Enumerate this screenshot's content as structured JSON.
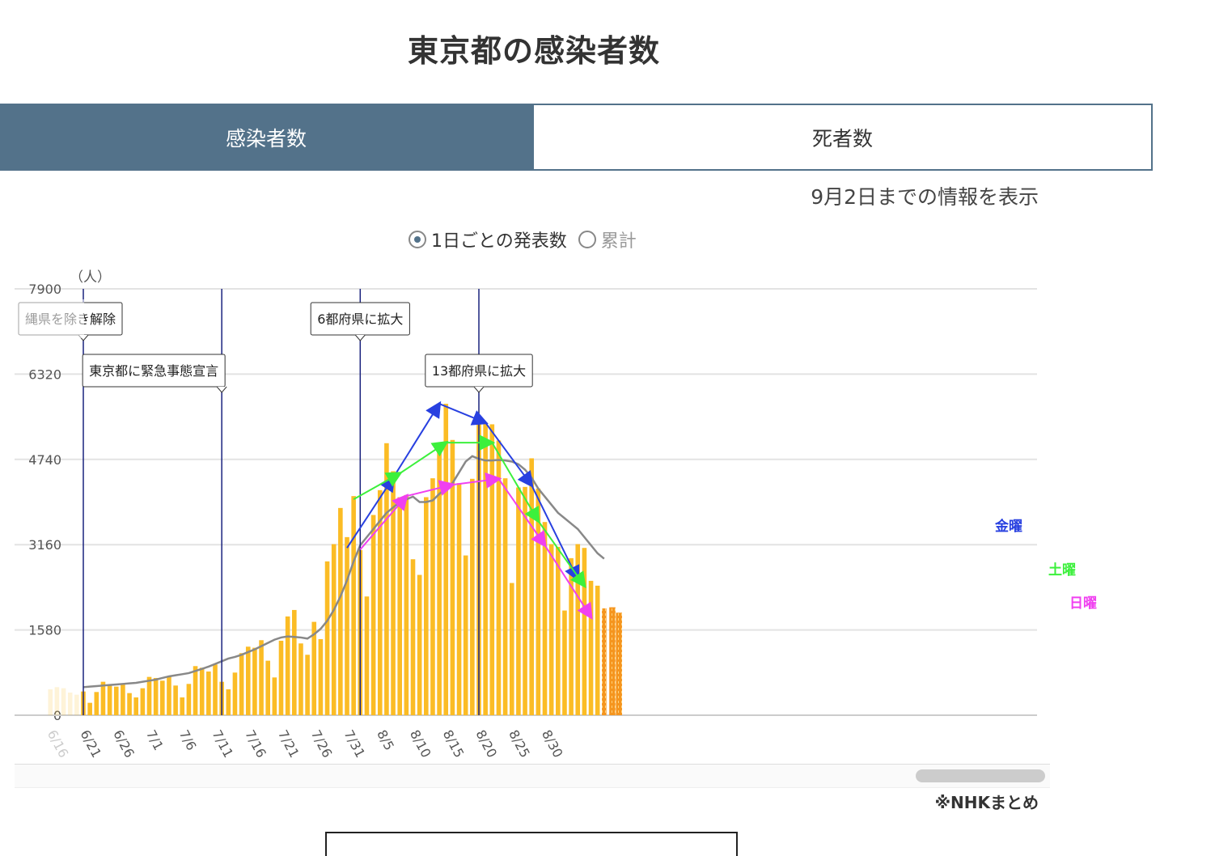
{
  "title": "東京都の感染者数",
  "tabs": [
    {
      "label": "感染者数",
      "active": true
    },
    {
      "label": "死者数",
      "active": false
    }
  ],
  "info": "9月2日までの情報を表示",
  "radios": [
    {
      "label": "1日ごとの発表数",
      "checked": true
    },
    {
      "label": "累計",
      "checked": false
    }
  ],
  "source": "※NHKまとめ",
  "colors": {
    "bar": "#fbbc25",
    "bar_hatched": "#f5951e",
    "avg": "#888888",
    "tab_active": "#53728a",
    "friday": "#2840e0",
    "saturday": "#3cf03c",
    "sunday": "#f040f0",
    "event_line": "#1a237e"
  },
  "chart_data": {
    "type": "bar",
    "unit": "（人）",
    "ylim": [
      0,
      7900
    ],
    "yticks": [
      0,
      1580,
      3160,
      4740,
      6320,
      7900
    ],
    "xtick_labels": [
      "6/16",
      "6/21",
      "6/26",
      "7/1",
      "7/6",
      "7/11",
      "7/16",
      "7/21",
      "7/26",
      "7/31",
      "8/5",
      "8/10",
      "8/15",
      "8/20",
      "8/25",
      "8/30"
    ],
    "start_date": "6/16",
    "values": [
      480,
      520,
      500,
      420,
      380,
      440,
      230,
      430,
      620,
      570,
      530,
      580,
      410,
      330,
      500,
      710,
      690,
      640,
      720,
      550,
      330,
      580,
      910,
      880,
      810,
      940,
      620,
      480,
      790,
      1150,
      1270,
      1250,
      1390,
      1010,
      700,
      1380,
      1830,
      1950,
      1330,
      1120,
      1730,
      1410,
      2850,
      3170,
      3840,
      3300,
      4060,
      3060,
      2200,
      3710,
      4170,
      5040,
      4520,
      4040,
      4080,
      2890,
      2600,
      4040,
      4390,
      4990,
      5770,
      5100,
      4300,
      2960,
      4380,
      5420,
      5420,
      5390,
      5090,
      4390,
      2450,
      4220,
      4230,
      4760,
      4200,
      3580,
      3170,
      3120,
      1940,
      2910,
      3170,
      3100,
      2490,
      2400,
      1980
    ],
    "moving_avg": [
      470,
      480,
      490,
      500,
      510,
      520,
      530,
      540,
      550,
      560,
      570,
      580,
      590,
      600,
      620,
      640,
      660,
      690,
      720,
      740,
      760,
      780,
      820,
      860,
      900,
      950,
      1000,
      1050,
      1080,
      1120,
      1170,
      1220,
      1280,
      1340,
      1400,
      1440,
      1460,
      1450,
      1440,
      1420,
      1500,
      1600,
      1750,
      1950,
      2200,
      2500,
      2850,
      3150,
      3300,
      3450,
      3600,
      3750,
      3850,
      3950,
      4000,
      4050,
      3950,
      3950,
      3980,
      4100,
      4200,
      4300,
      4500,
      4700,
      4800,
      4750,
      4720,
      4720,
      4730,
      4720,
      4700,
      4650,
      4550,
      4400,
      4200,
      4050,
      3900,
      3750,
      3650,
      3550,
      3450,
      3300,
      3150,
      3000,
      2900
    ],
    "hatched_from_index": 84,
    "hatched_extra": [
      2000,
      1900
    ],
    "events": [
      {
        "label": "縄県を除き解除",
        "index": 5
      },
      {
        "label": "東京都に緊急事態宣言",
        "index": 26
      },
      {
        "label": "6都府県に拡大",
        "index": 47
      },
      {
        "label": "13都府県に拡大",
        "index": 65
      }
    ],
    "trend_series": [
      {
        "name": "金曜",
        "color": "#2840e0",
        "points": [
          [
            45,
            3100
          ],
          [
            52,
            4400
          ],
          [
            59,
            5770
          ],
          [
            66,
            5420
          ],
          [
            73,
            4260
          ],
          [
            80,
            2520
          ]
        ]
      },
      {
        "name": "土曜",
        "color": "#3cf03c",
        "points": [
          [
            46,
            4000
          ],
          [
            53,
            4480
          ],
          [
            60,
            5050
          ],
          [
            67,
            5050
          ],
          [
            74,
            3600
          ],
          [
            81,
            2400
          ]
        ]
      },
      {
        "name": "日曜",
        "color": "#f040f0",
        "points": [
          [
            47,
            3070
          ],
          [
            54,
            4060
          ],
          [
            61,
            4270
          ],
          [
            68,
            4380
          ],
          [
            75,
            3150
          ],
          [
            82,
            1820
          ]
        ]
      }
    ]
  }
}
